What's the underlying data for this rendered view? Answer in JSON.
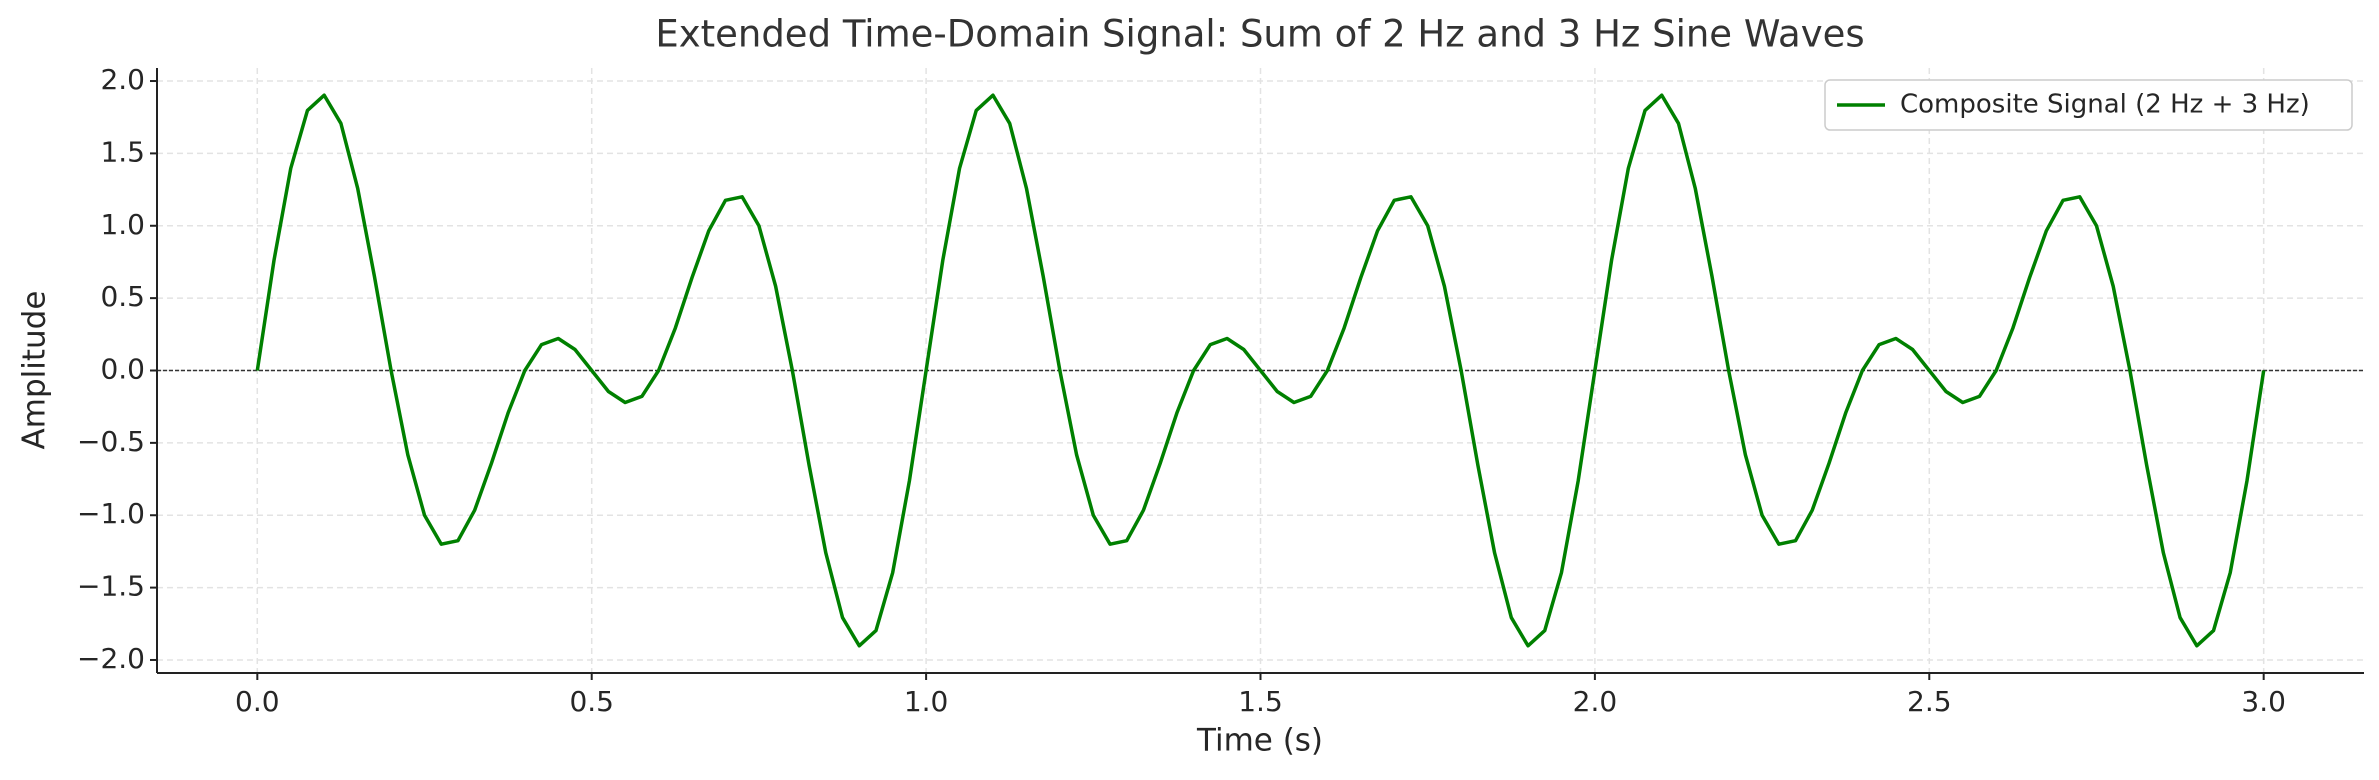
{
  "chart_data": {
    "type": "line",
    "title": "Extended Time-Domain Signal: Sum of 2 Hz and 3 Hz Sine Waves",
    "x_label": "Time (s)",
    "y_label": "Amplitude",
    "x": [
      0,
      0.025,
      0.05,
      0.075,
      0.1,
      0.125,
      0.15,
      0.175,
      0.2,
      0.225,
      0.25,
      0.275,
      0.3,
      0.325,
      0.35,
      0.375,
      0.4,
      0.425,
      0.45,
      0.475,
      0.5,
      0.525,
      0.55,
      0.575,
      0.6,
      0.625,
      0.65,
      0.675,
      0.7,
      0.725,
      0.75,
      0.775,
      0.8,
      0.825,
      0.85,
      0.875,
      0.9,
      0.925,
      0.95,
      0.975,
      1,
      1.025,
      1.05,
      1.075,
      1.1,
      1.125,
      1.15,
      1.175,
      1.2,
      1.225,
      1.25,
      1.275,
      1.3,
      1.325,
      1.35,
      1.375,
      1.4,
      1.425,
      1.45,
      1.475,
      1.5,
      1.525,
      1.55,
      1.575,
      1.6,
      1.625,
      1.65,
      1.675,
      1.7,
      1.725,
      1.75,
      1.775,
      1.8,
      1.825,
      1.85,
      1.875,
      1.9,
      1.925,
      1.95,
      1.975,
      2,
      2.025,
      2.05,
      2.075,
      2.1,
      2.125,
      2.15,
      2.175,
      2.2,
      2.225,
      2.25,
      2.275,
      2.3,
      2.325,
      2.35,
      2.375,
      2.4,
      2.425,
      2.45,
      2.475,
      2.5,
      2.525,
      2.55,
      2.575,
      2.6,
      2.625,
      2.65,
      2.675,
      2.7,
      2.725,
      2.75,
      2.775,
      2.8,
      2.825,
      2.85,
      2.875,
      2.9,
      2.925,
      2.95,
      2.975,
      3
    ],
    "series": [
      {
        "name": "Composite Signal (2 Hz + 3 Hz)",
        "color": "#008000",
        "values": [
          0,
          0.763,
          1.397,
          1.797,
          1.902,
          1.707,
          1.26,
          0.653,
          0,
          -0.582,
          -1,
          -1.2,
          -1.176,
          -0.965,
          -0.642,
          -0.293,
          0,
          0.179,
          0.221,
          0.145,
          0,
          -0.145,
          -0.221,
          -0.179,
          0,
          0.293,
          0.642,
          0.965,
          1.176,
          1.2,
          1,
          0.582,
          0,
          -0.653,
          -1.26,
          -1.707,
          -1.902,
          -1.797,
          -1.397,
          -0.763,
          0,
          0.763,
          1.397,
          1.797,
          1.902,
          1.707,
          1.26,
          0.653,
          0,
          -0.582,
          -1,
          -1.2,
          -1.176,
          -0.965,
          -0.642,
          -0.293,
          0,
          0.179,
          0.221,
          0.145,
          0,
          -0.145,
          -0.221,
          -0.179,
          0,
          0.293,
          0.642,
          0.965,
          1.176,
          1.2,
          1,
          0.582,
          0,
          -0.653,
          -1.26,
          -1.707,
          -1.902,
          -1.797,
          -1.397,
          -0.763,
          0,
          0.763,
          1.397,
          1.797,
          1.902,
          1.707,
          1.26,
          0.653,
          0,
          -0.582,
          -1,
          -1.2,
          -1.176,
          -0.965,
          -0.642,
          -0.293,
          0,
          0.179,
          0.221,
          0.145,
          0,
          -0.145,
          -0.221,
          -0.179,
          0,
          0.293,
          0.642,
          0.965,
          1.176,
          1.2,
          1,
          0.582,
          0,
          -0.653,
          -1.26,
          -1.707,
          -1.902,
          -1.797,
          -1.397,
          -0.763,
          0
        ]
      }
    ],
    "xlim": [
      -0.15,
      3.15
    ],
    "ylim": [
      -2.09,
      2.09
    ],
    "xticks": [
      {
        "value": 0,
        "label": "0.0"
      },
      0.5,
      {
        "value": 1,
        "label": "1.0"
      },
      1.5,
      {
        "value": 2,
        "label": "2.0"
      },
      2.5,
      {
        "value": 3,
        "label": "3.0"
      }
    ],
    "yticks": [
      {
        "value": -2,
        "label": "−2.0"
      },
      {
        "value": -1.5,
        "label": "−1.5"
      },
      {
        "value": -1,
        "label": "−1.0"
      },
      {
        "value": -0.5,
        "label": "−0.5"
      },
      {
        "value": 0,
        "label": "0.0"
      },
      0.5,
      {
        "value": 1,
        "label": "1.0"
      },
      1.5,
      {
        "value": 2,
        "label": "2.0"
      }
    ],
    "grid": true,
    "zero_line": true,
    "legend": "upper right"
  }
}
